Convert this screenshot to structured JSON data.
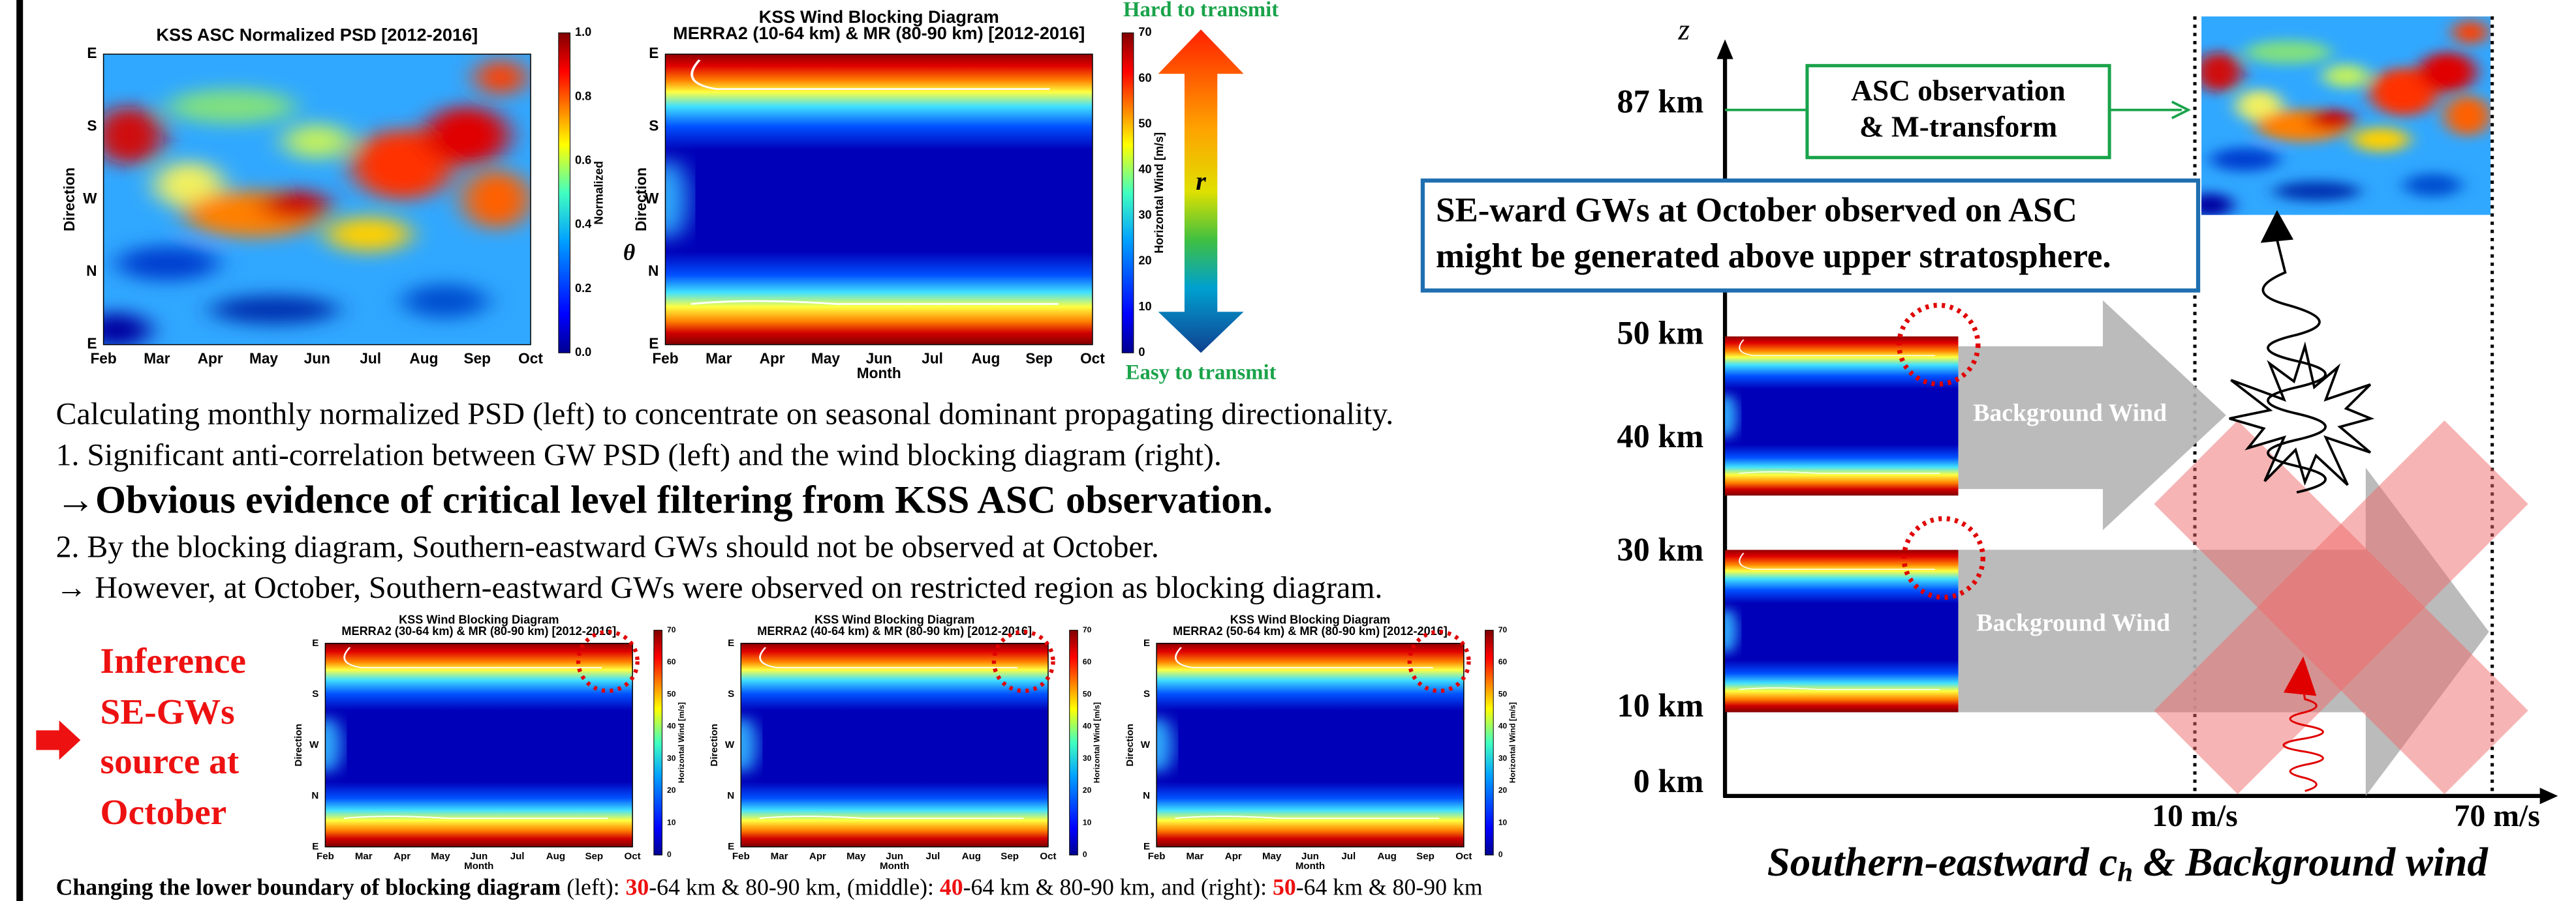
{
  "top_left_plot": {
    "title": "KSS ASC Normalized PSD [2012-2016]",
    "y_label": "Direction",
    "y_ticks": [
      "E",
      "S",
      "W",
      "N",
      "E"
    ],
    "x_ticks": [
      "Feb",
      "Mar",
      "Apr",
      "May",
      "Jun",
      "Jul",
      "Aug",
      "Sep",
      "Oct"
    ],
    "colorbar_label": "Normalized",
    "colorbar_ticks": [
      "0.0",
      "0.2",
      "0.4",
      "0.6",
      "0.8",
      "1.0"
    ]
  },
  "top_right_plot": {
    "title": [
      "KSS Wind Blocking Diagram",
      "MERRA2 (10-64 km) & MR (80-90 km) [2012-2016]"
    ],
    "y_label": "Direction",
    "y_symbol": "θ",
    "y_ticks": [
      "E",
      "S",
      "W",
      "N",
      "E"
    ],
    "x_ticks": [
      "Feb",
      "Mar",
      "Apr",
      "May",
      "Jun",
      "Jul",
      "Aug",
      "Sep",
      "Oct"
    ],
    "x_label": "Month",
    "colorbar_label": "Horizontal Wind [m/s]",
    "colorbar_ticks": [
      "0",
      "10",
      "20",
      "30",
      "40",
      "50",
      "60",
      "70"
    ]
  },
  "transmit_arrow": {
    "top": "Hard to transmit",
    "bottom": "Easy to transmit",
    "symbol": "r"
  },
  "text_lines": [
    "Calculating monthly normalized PSD (left) to concentrate on seasonal dominant propagating directionality.",
    "1. Significant anti-correlation between GW PSD (left) and the wind blocking diagram (right).",
    "→Obvious evidence of critical level filtering from KSS ASC observation.",
    "2. By the blocking diagram, Southern-eastward GWs should not be observed at October.",
    "→ However, at October, Southern-eastward GWs were observed on restricted region as blocking diagram."
  ],
  "inference": [
    "Inference",
    "SE-GWs",
    "source at",
    "October"
  ],
  "small_plots": {
    "titles": [
      [
        "KSS Wind Blocking Diagram",
        "MERRA2 (30-64 km) & MR (80-90 km) [2012-2016]"
      ],
      [
        "KSS Wind Blocking Diagram",
        "MERRA2 (40-64 km) & MR (80-90 km) [2012-2016]"
      ],
      [
        "KSS Wind Blocking Diagram",
        "MERRA2 (50-64 km) & MR (80-90 km) [2012-2016]"
      ]
    ],
    "y_label": "Direction",
    "y_ticks": [
      "E",
      "S",
      "W",
      "N",
      "E"
    ],
    "x_ticks": [
      "Feb",
      "Mar",
      "Apr",
      "May",
      "Jun",
      "Jul",
      "Aug",
      "Sep",
      "Oct"
    ],
    "x_label": "Month",
    "colorbar_label": "Horizontal Wind [m/s]",
    "colorbar_ticks": [
      "0",
      "10",
      "20",
      "30",
      "40",
      "50",
      "60",
      "70"
    ]
  },
  "caption": [
    "Changing the lower boundary of blocking diagram",
    " (left): ",
    "30",
    "-64 km & 80-90 km, (middle): ",
    "40",
    "-64 km & 80-90 km, and (right): ",
    "50",
    "-64 km & 80-90 km"
  ],
  "diagram": {
    "z": "z",
    "altitudes": [
      "87 km",
      "50 km",
      "40 km",
      "30 km",
      "10 km",
      "0 km"
    ],
    "asc_box": [
      "ASC observation",
      "& M-transform"
    ],
    "callout": [
      "SE-ward GWs at October observed on ASC",
      "might be generated above upper stratosphere."
    ],
    "wind_labels": [
      "Background Wind",
      "Background Wind"
    ],
    "speed_labels": [
      "10 m/s",
      "70 m/s"
    ],
    "x_title": [
      "Southern-eastward c",
      "h",
      " & Background wind"
    ]
  }
}
